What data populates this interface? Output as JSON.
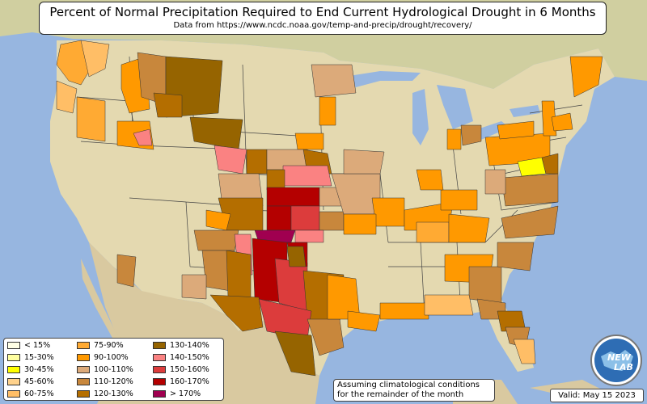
{
  "title": "Percent of Normal Precipitation Required to End Current Hydrological Drought in 6 Months",
  "subtitle": "Data from https://www.ncdc.noaa.gov/temp-and-precip/drought/recovery/",
  "legend": [
    {
      "label": "< 15%",
      "color": "#ffffe6"
    },
    {
      "label": "15-30%",
      "color": "#ffffa0"
    },
    {
      "label": "30-45%",
      "color": "#ffff00"
    },
    {
      "label": "45-60%",
      "color": "#ffd28c"
    },
    {
      "label": "60-75%",
      "color": "#ffbe66"
    },
    {
      "label": "75-90%",
      "color": "#ffaa33"
    },
    {
      "label": "90-100%",
      "color": "#ff9900"
    },
    {
      "label": "100-110%",
      "color": "#dcaa7a"
    },
    {
      "label": "110-120%",
      "color": "#c8873c"
    },
    {
      "label": "120-130%",
      "color": "#b46e00"
    },
    {
      "label": "130-140%",
      "color": "#966400"
    },
    {
      "label": "140-150%",
      "color": "#fa8282"
    },
    {
      "label": "150-160%",
      "color": "#dc3c3c"
    },
    {
      "label": "160-170%",
      "color": "#b40000"
    },
    {
      "label": "> 170%",
      "color": "#a00050"
    }
  ],
  "note": {
    "line1": "Assuming climatological conditions",
    "line2": "for the remainder of the month"
  },
  "valid": "Valid: May 15 2023",
  "logo": {
    "text_top": "NEW",
    "text_bottom": "LAB",
    "icon": "globe-icon"
  },
  "colors": {
    "ocean": "#97b6e0",
    "land": "#e6dcb4",
    "land_canada": "#d2d2a0",
    "land_mexico": "#d7c8a0"
  }
}
